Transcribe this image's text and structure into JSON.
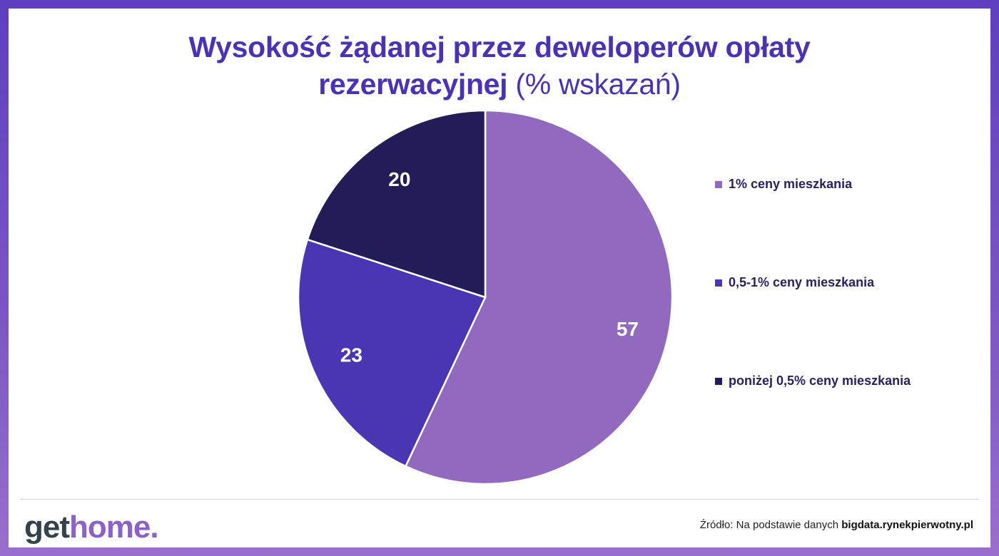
{
  "title": {
    "bold": "Wysokość żądanej przez deweloperów opłaty rezerwacyjnej",
    "light": "(% wskazań)"
  },
  "chart_data": {
    "type": "pie",
    "title": "Wysokość żądanej przez deweloperów opłaty rezerwacyjnej (% wskazań)",
    "slices": [
      {
        "label": "1% ceny mieszkania",
        "value": 57,
        "color": "#9169bf"
      },
      {
        "label": "0,5-1% ceny mieszkania",
        "value": 23,
        "color": "#4a36b2"
      },
      {
        "label": "poniżej 0,5% ceny mieszkania",
        "value": 20,
        "color": "#221d58"
      }
    ],
    "legend": "right",
    "data_labels": true
  },
  "footer": {
    "logo_part1": "get",
    "logo_part2": "home.",
    "source_prefix": "Źródło: Na podstawie danych",
    "source_link": "bigdata.rynekpierwotny.pl"
  }
}
